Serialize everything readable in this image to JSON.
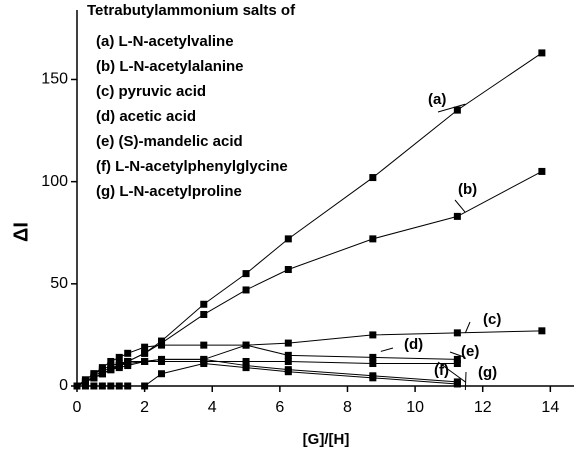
{
  "chart_data": {
    "type": "line",
    "legend_title": "Tetrabutylammonium salts of",
    "x_label": "[G]/[H]",
    "y_label": "ΔI",
    "x": [
      0,
      0.25,
      0.5,
      0.75,
      1,
      1.25,
      1.5,
      2,
      2.5,
      3.75,
      5,
      6.25,
      8.75,
      11.25,
      13.75
    ],
    "series": [
      {
        "name": "(a) L-N-acetylvaline",
        "label": "(a)",
        "color": "#000000",
        "values": [
          0,
          2,
          4,
          6,
          8,
          10,
          12,
          16,
          22,
          40,
          55,
          72,
          102,
          135,
          163
        ]
      },
      {
        "name": "(b) L-N-acetylalanine",
        "label": "(b)",
        "color": "#000000",
        "values": [
          0,
          2,
          4,
          6,
          8,
          10,
          12,
          16,
          21,
          35,
          47,
          57,
          72,
          83,
          105
        ]
      },
      {
        "name": "(c) pyruvic acid",
        "label": "(c)",
        "color": "#000000",
        "values": [
          0,
          3,
          6,
          9,
          12,
          14,
          16,
          19,
          20,
          20,
          20,
          21,
          25,
          26,
          27
        ]
      },
      {
        "name": "(d) acetic acid",
        "label": "(d)",
        "color": "#000000",
        "values": [
          0,
          2,
          4,
          6,
          8,
          9,
          10,
          12,
          13,
          13,
          20,
          15,
          14,
          13,
          null
        ]
      },
      {
        "name": "(e) (S)-mandelic acid",
        "label": "(e)",
        "color": "#000000",
        "values": [
          0,
          3,
          6,
          8,
          10,
          11,
          12,
          12,
          12,
          12,
          12,
          12,
          11,
          11,
          null
        ]
      },
      {
        "name": "(f) L-N-acetylphenylglycine",
        "label": "(f)",
        "color": "#000000",
        "values": [
          0,
          2,
          5,
          7,
          9,
          10,
          11,
          12,
          13,
          13,
          10,
          8,
          5,
          2,
          null
        ]
      },
      {
        "name": "(g) L-N-acetylproline",
        "label": "(g)",
        "color": "#000000",
        "values": [
          0,
          0,
          0,
          0,
          0,
          0,
          0,
          0,
          6,
          11,
          9,
          7,
          4,
          1,
          null
        ]
      }
    ],
    "xlim": [
      0,
      14.7
    ],
    "ylim": [
      0,
      184
    ],
    "xticks": [
      0,
      2,
      4,
      6,
      8,
      10,
      12,
      14
    ],
    "yticks": [
      0,
      50,
      100,
      150
    ]
  }
}
